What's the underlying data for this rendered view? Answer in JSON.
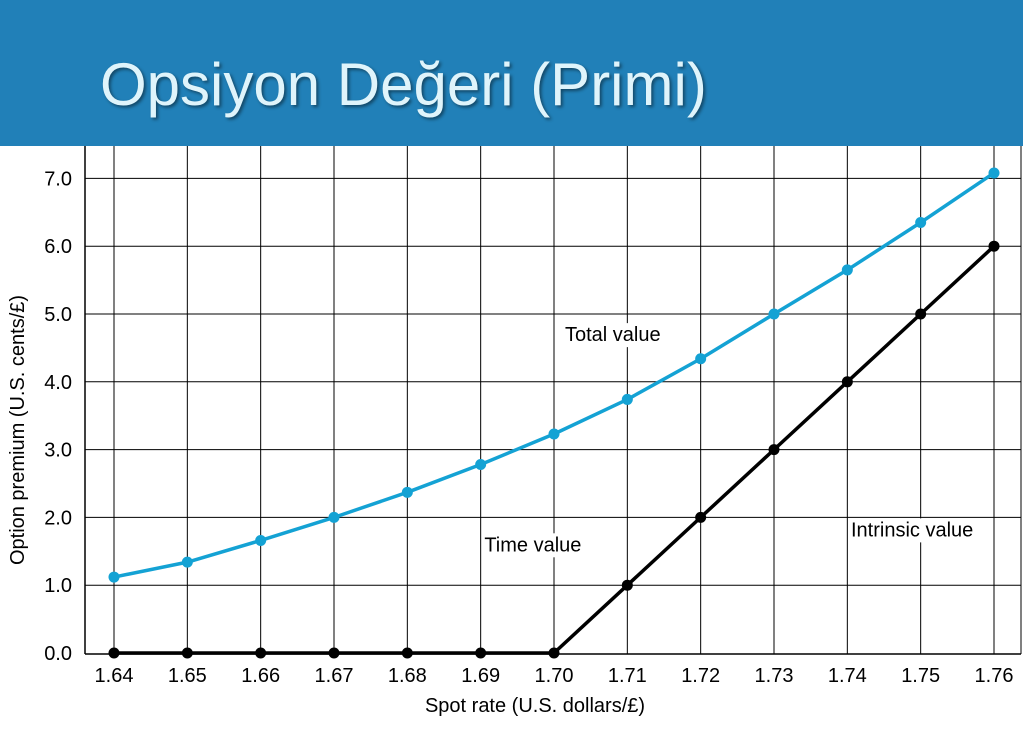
{
  "slide": {
    "title": "Opsiyon Değeri (Primi)"
  },
  "chart_data": {
    "type": "line",
    "title": "",
    "xlabel": "Spot rate (U.S. dollars/£)",
    "ylabel": "Option premium (U.S. cents/£)",
    "x": [
      1.64,
      1.65,
      1.66,
      1.67,
      1.68,
      1.69,
      1.7,
      1.71,
      1.72,
      1.73,
      1.74,
      1.75,
      1.76
    ],
    "x_tick_labels": [
      "1.64",
      "1.65",
      "1.66",
      "1.67",
      "1.68",
      "1.69",
      "1.70",
      "1.71",
      "1.72",
      "1.73",
      "1.74",
      "1.75",
      "1.76"
    ],
    "y_ticks": [
      0,
      1,
      2,
      3,
      4,
      5,
      6,
      7
    ],
    "y_tick_labels": [
      "0.0",
      "1.0",
      "2.0",
      "3.0",
      "4.0",
      "5.0",
      "6.0",
      "7.0"
    ],
    "xlim": [
      1.64,
      1.76
    ],
    "ylim": [
      0,
      7.5
    ],
    "grid": true,
    "series": [
      {
        "values": [
          1.12,
          1.34,
          1.66,
          2.0,
          2.37,
          2.78,
          3.23,
          3.74,
          4.34,
          5.0,
          5.65,
          6.35,
          7.08
        ],
        "color": "#14a2d4"
      },
      {
        "values": [
          0,
          0,
          0,
          0,
          0,
          0,
          0,
          1.0,
          2.0,
          3.0,
          4.0,
          5.0,
          6.0
        ],
        "color": "#000000"
      }
    ],
    "annotations": [
      {
        "text": "Total value",
        "x": 1.7015,
        "y": 4.6
      },
      {
        "text": "Time value",
        "x": 1.6905,
        "y": 1.5
      },
      {
        "text": "Intrinsic value",
        "x": 1.7405,
        "y": 1.72
      }
    ]
  }
}
